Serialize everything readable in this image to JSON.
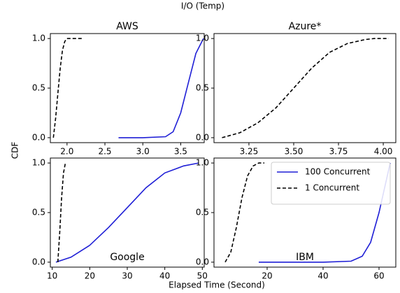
{
  "figure": {
    "title": "I/O (Temp)",
    "ylabel": "CDF",
    "xlabel": "Elapsed Time (Second)"
  },
  "chart_data": [
    {
      "type": "line",
      "title": "AWS",
      "xlim": [
        1.78,
        3.81
      ],
      "ylim": [
        -0.05,
        1.05
      ],
      "xticks": [
        {
          "value": 2,
          "label": "2.0"
        },
        2.5,
        {
          "value": 3,
          "label": "3.0"
        },
        3.5
      ],
      "yticks": [
        {
          "value": 0,
          "label": "0.0"
        },
        0.5,
        {
          "value": 1,
          "label": "1.0"
        }
      ],
      "series": [
        {
          "color": "#1f1fd6",
          "dash": false,
          "x": [
            2.68,
            3.0,
            3.3,
            3.4,
            3.5,
            3.6,
            3.7,
            3.8
          ],
          "values": [
            0,
            0,
            0.01,
            0.06,
            0.25,
            0.55,
            0.85,
            1.0
          ]
        },
        {
          "color": "#000000",
          "dash": true,
          "x": [
            1.82,
            1.85,
            1.88,
            1.91,
            1.94,
            1.97,
            2.0,
            2.1,
            2.22
          ],
          "values": [
            0,
            0.2,
            0.45,
            0.7,
            0.88,
            0.97,
            1.0,
            1.0,
            1.0
          ]
        }
      ]
    },
    {
      "type": "line",
      "title": "Azure*",
      "xlim": [
        3.055,
        4.07
      ],
      "ylim": [
        -0.05,
        1.05
      ],
      "xticks": [
        3.25,
        {
          "value": 3.5,
          "label": "3.50"
        },
        3.75,
        {
          "value": 4,
          "label": "4.00"
        }
      ],
      "yticks": [
        {
          "value": 0,
          "label": "0.0"
        },
        0.5,
        {
          "value": 1,
          "label": "1.0"
        }
      ],
      "series": [
        {
          "color": "#000000",
          "dash": true,
          "x": [
            3.1,
            3.2,
            3.3,
            3.4,
            3.5,
            3.6,
            3.7,
            3.8,
            3.9,
            3.95,
            4.03
          ],
          "values": [
            0,
            0.05,
            0.15,
            0.3,
            0.5,
            0.7,
            0.86,
            0.95,
            0.99,
            1.0,
            1.0
          ]
        }
      ]
    },
    {
      "type": "line",
      "title": "Google",
      "xlim": [
        9.5,
        50.5
      ],
      "ylim": [
        -0.05,
        1.05
      ],
      "xticks": [
        10,
        20,
        30,
        40,
        50
      ],
      "yticks": [
        {
          "value": 0,
          "label": "0.0"
        },
        0.5,
        {
          "value": 1,
          "label": "1.0"
        }
      ],
      "series": [
        {
          "color": "#1f1fd6",
          "dash": false,
          "x": [
            11,
            15,
            20,
            25,
            30,
            35,
            40,
            45,
            49
          ],
          "values": [
            0,
            0.05,
            0.17,
            0.35,
            0.55,
            0.75,
            0.9,
            0.97,
            1.0
          ]
        },
        {
          "color": "#000000",
          "dash": true,
          "x": [
            11.5,
            12,
            12.5,
            13,
            13.5
          ],
          "values": [
            0,
            0.3,
            0.65,
            0.9,
            1.0
          ]
        }
      ]
    },
    {
      "type": "line",
      "title": "IBM",
      "xlim": [
        1,
        66
      ],
      "ylim": [
        -0.05,
        1.05
      ],
      "xticks": [
        20,
        40,
        60
      ],
      "yticks": [
        {
          "value": 0,
          "label": "0.0"
        },
        0.5,
        {
          "value": 1,
          "label": "1.0"
        }
      ],
      "legend": "upper right",
      "series": [
        {
          "name": "100 Concurrent",
          "color": "#1f1fd6",
          "dash": false,
          "x": [
            17,
            40,
            50,
            54,
            57,
            60,
            62,
            64
          ],
          "values": [
            0,
            0,
            0.01,
            0.06,
            0.2,
            0.5,
            0.75,
            1.0
          ]
        },
        {
          "name": "1 Concurrent",
          "color": "#000000",
          "dash": true,
          "x": [
            5,
            7,
            9,
            11,
            13,
            15,
            17,
            19
          ],
          "values": [
            0,
            0.1,
            0.35,
            0.65,
            0.87,
            0.97,
            1.0,
            1.0
          ]
        }
      ]
    }
  ]
}
